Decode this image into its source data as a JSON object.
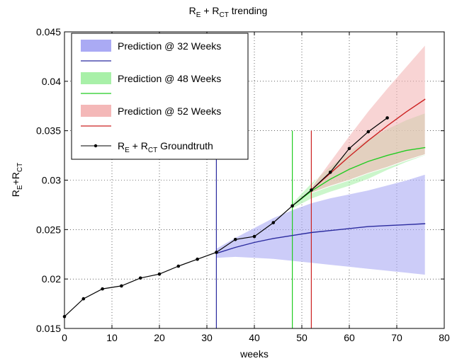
{
  "chart_data": {
    "type": "line",
    "title": "R_E + R_CT trending",
    "xlabel": "weeks",
    "ylabel": "R_E+R_CT",
    "xlim": [
      0,
      80
    ],
    "ylim": [
      0.015,
      0.045
    ],
    "xticks": [
      0,
      10,
      20,
      30,
      40,
      50,
      60,
      70,
      80
    ],
    "yticks": [
      0.015,
      0.02,
      0.025,
      0.03,
      0.035,
      0.04,
      0.045
    ],
    "xtick_labels": [
      "0",
      "10",
      "20",
      "30",
      "40",
      "50",
      "60",
      "70",
      "80"
    ],
    "ytick_labels": [
      "0.015",
      "0.02",
      "0.025",
      "0.03",
      "0.035",
      "0.04",
      "0.045"
    ],
    "grid": true,
    "legend_position": "top-left",
    "groundtruth": {
      "name": "R_E + R_CT Groundtruth",
      "color": "#000000",
      "x": [
        0,
        4,
        8,
        12,
        16,
        20,
        24,
        28,
        32,
        36,
        40,
        44,
        48,
        52,
        56,
        60,
        64,
        68
      ],
      "y": [
        0.0162,
        0.018,
        0.019,
        0.0193,
        0.0201,
        0.0205,
        0.0213,
        0.022,
        0.0227,
        0.024,
        0.0243,
        0.0257,
        0.0274,
        0.029,
        0.0308,
        0.0332,
        0.0349,
        0.0363
      ]
    },
    "predictions": [
      {
        "name": "Prediction @ 32 Weeks",
        "line_color": "#2b2b9f",
        "band_color": "#aaaaf4",
        "vline_x": 32,
        "x": [
          32,
          36,
          40,
          44,
          48,
          52,
          56,
          60,
          64,
          68,
          72,
          76
        ],
        "mean": [
          0.0226,
          0.0232,
          0.0237,
          0.0241,
          0.0244,
          0.0247,
          0.0249,
          0.0251,
          0.0253,
          0.0254,
          0.0255,
          0.0256
        ],
        "upper": [
          0.0231,
          0.0242,
          0.0252,
          0.0262,
          0.027,
          0.0277,
          0.0282,
          0.0286,
          0.029,
          0.0295,
          0.03,
          0.0306
        ],
        "lower": [
          0.0221,
          0.0222,
          0.0221,
          0.022,
          0.0218,
          0.0216,
          0.0214,
          0.0212,
          0.021,
          0.0208,
          0.0206,
          0.0204
        ]
      },
      {
        "name": "Prediction @ 48 Weeks",
        "line_color": "#22cc22",
        "band_color": "#a8f0a8",
        "vline_x": 48,
        "x": [
          48,
          52,
          56,
          60,
          64,
          68,
          72,
          76
        ],
        "mean": [
          0.0274,
          0.0289,
          0.0301,
          0.0311,
          0.0319,
          0.0325,
          0.033,
          0.0333
        ],
        "upper": [
          0.0277,
          0.0297,
          0.0314,
          0.0329,
          0.0342,
          0.0352,
          0.0361,
          0.0368
        ],
        "lower": [
          0.0271,
          0.0281,
          0.0288,
          0.0294,
          0.0301,
          0.031,
          0.0318,
          0.0325
        ]
      },
      {
        "name": "Prediction @ 52 Weeks",
        "line_color": "#cc2222",
        "band_color": "#f4b8b8",
        "vline_x": 52,
        "x": [
          52,
          56,
          60,
          64,
          68,
          72,
          76
        ],
        "mean": [
          0.029,
          0.0307,
          0.0324,
          0.034,
          0.0355,
          0.0369,
          0.0382
        ],
        "upper": [
          0.0293,
          0.0319,
          0.0345,
          0.037,
          0.0393,
          0.0415,
          0.0437
        ],
        "lower": [
          0.0287,
          0.0294,
          0.03,
          0.0307,
          0.0313,
          0.032,
          0.0326
        ]
      }
    ]
  }
}
